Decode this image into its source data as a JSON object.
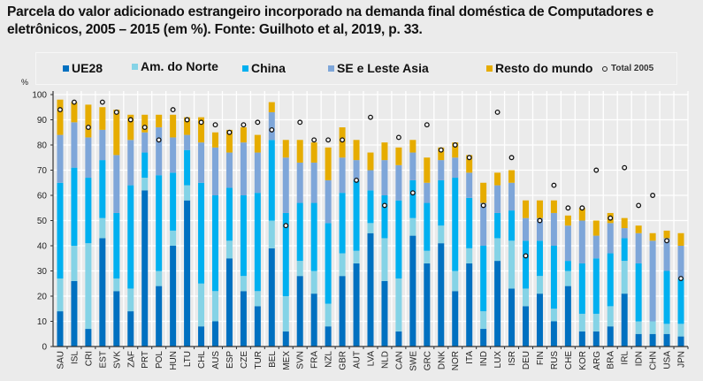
{
  "chart_data": {
    "type": "bar",
    "stacked": true,
    "title": "Parcela do valor adicionado estrangeiro incorporado na demanda final doméstica de Computadores e eletrônicos, 2005 – 2015 (em %). Fonte: Guilhoto et al, 2019, p. 33.",
    "ylabel": "%",
    "xlabel": "",
    "ylim": [
      0,
      100
    ],
    "yticks": [
      0,
      10,
      20,
      30,
      40,
      50,
      60,
      70,
      80,
      90,
      100
    ],
    "grid": true,
    "legend_position": "top",
    "categories": [
      "SAU",
      "ISL",
      "CRI",
      "EST",
      "SVK",
      "ZAF",
      "PRT",
      "POL",
      "HUN",
      "LTU",
      "CHL",
      "AUS",
      "ESP",
      "CZE",
      "TUR",
      "BEL",
      "MEX",
      "SVN",
      "FRA",
      "NZL",
      "GBR",
      "AUT",
      "LVA",
      "NLD",
      "CAN",
      "SWE",
      "GRC",
      "DNK",
      "NOR",
      "ITA",
      "IND",
      "LUX",
      "ISR",
      "DEU",
      "FIN",
      "RUS",
      "CHE",
      "KOR",
      "ARG",
      "BRA",
      "IRL",
      "IDN",
      "CHN",
      "USA",
      "JPN"
    ],
    "series": [
      {
        "name": "UE28",
        "color": "#0070c0",
        "values": [
          14,
          26,
          7,
          43,
          22,
          14,
          62,
          24,
          40,
          58,
          8,
          10,
          35,
          22,
          16,
          39,
          6,
          28,
          21,
          8,
          28,
          33,
          45,
          26,
          6,
          44,
          33,
          41,
          22,
          33,
          7,
          34,
          23,
          16,
          21,
          10,
          24,
          6,
          6,
          8,
          21,
          5,
          5,
          5,
          4
        ]
      },
      {
        "name": "Am. do Norte",
        "color": "#85d3e6",
        "values": [
          13,
          14,
          34,
          8,
          5,
          9,
          5,
          6,
          6,
          6,
          17,
          12,
          7,
          6,
          6,
          11,
          14,
          6,
          9,
          9,
          9,
          5,
          4,
          17,
          21,
          7,
          5,
          7,
          8,
          6,
          7,
          9,
          19,
          7,
          7,
          5,
          6,
          7,
          7,
          8,
          13,
          5,
          5,
          4,
          5
        ]
      },
      {
        "name": "China",
        "color": "#00b0f0",
        "values": [
          38,
          31,
          26,
          23,
          26,
          41,
          10,
          38,
          23,
          14,
          40,
          38,
          21,
          32,
          39,
          32,
          33,
          23,
          27,
          32,
          24,
          28,
          13,
          17,
          31,
          15,
          19,
          18,
          37,
          20,
          26,
          10,
          12,
          19,
          14,
          25,
          4,
          20,
          22,
          21,
          9,
          23,
          0,
          21,
          18
        ]
      },
      {
        "name": "SE e Leste Asia",
        "color": "#7ea6d9",
        "values": [
          19,
          18,
          16,
          12,
          23,
          18,
          8,
          19,
          14,
          6,
          16,
          19,
          14,
          21,
          16,
          11,
          22,
          16,
          16,
          17,
          14,
          8,
          8,
          14,
          14,
          11,
          8,
          8,
          8,
          10,
          17,
          11,
          11,
          9,
          9,
          13,
          14,
          17,
          9,
          12,
          4,
          12,
          32,
          13,
          13
        ]
      },
      {
        "name": "Resto do mundo",
        "color": "#e6ac00",
        "values": [
          14,
          8,
          13,
          9,
          18,
          10,
          7,
          5,
          9,
          7,
          10,
          6,
          9,
          6,
          7,
          4,
          7,
          9,
          8,
          13,
          12,
          8,
          7,
          7,
          7,
          5,
          10,
          5,
          6,
          7,
          8,
          5,
          5,
          7,
          7,
          5,
          4,
          5,
          6,
          4,
          4,
          3,
          3,
          3,
          5
        ]
      }
    ],
    "markers": {
      "name": "Total 2005",
      "values": [
        94,
        97,
        87,
        97,
        93,
        90,
        87,
        82,
        94,
        90,
        89,
        88,
        85,
        88,
        89,
        86,
        48,
        89,
        82,
        82,
        82,
        66,
        91,
        56,
        83,
        61,
        88,
        78,
        80,
        75,
        56,
        93,
        75,
        36,
        50,
        64,
        55,
        55,
        70,
        51,
        71,
        56,
        60,
        42,
        27
      ]
    }
  }
}
